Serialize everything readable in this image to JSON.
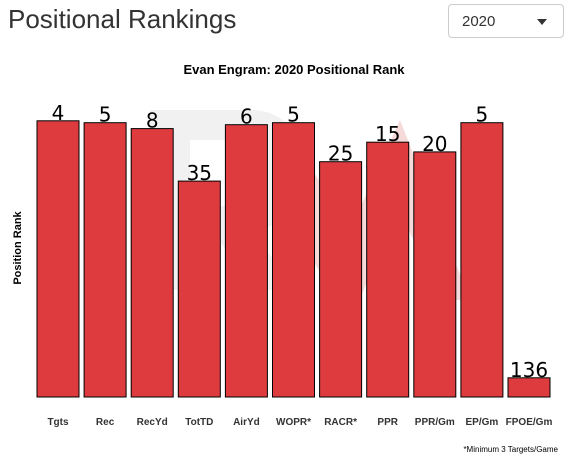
{
  "page": {
    "title": "Positional Rankings"
  },
  "year_select": {
    "value": "2020",
    "icon": "chevron-down-icon"
  },
  "colors": {
    "bar_fill": "#dd3b3e",
    "bar_stroke": "#000000",
    "watermark": "#e8e8e8"
  },
  "chart_data": {
    "type": "bar",
    "title": "Evan Engram: 2020 Positional Rank",
    "xlabel": "",
    "ylabel": "Position Rank",
    "y_axis": "reversed (rank 1 at top, tallest bar = best rank)",
    "grid": false,
    "legend": "none",
    "categories": [
      "Tgts",
      "Rec",
      "RecYd",
      "TotTD",
      "AirYd",
      "WOPR*",
      "RACR*",
      "PPR",
      "PPR/Gm",
      "EP/Gm",
      "FPOE/Gm"
    ],
    "values": [
      4,
      5,
      8,
      35,
      6,
      5,
      25,
      15,
      20,
      5,
      136
    ],
    "ylim": [
      0,
      140
    ],
    "footnote": "*Minimum 3 Targets/Game"
  }
}
